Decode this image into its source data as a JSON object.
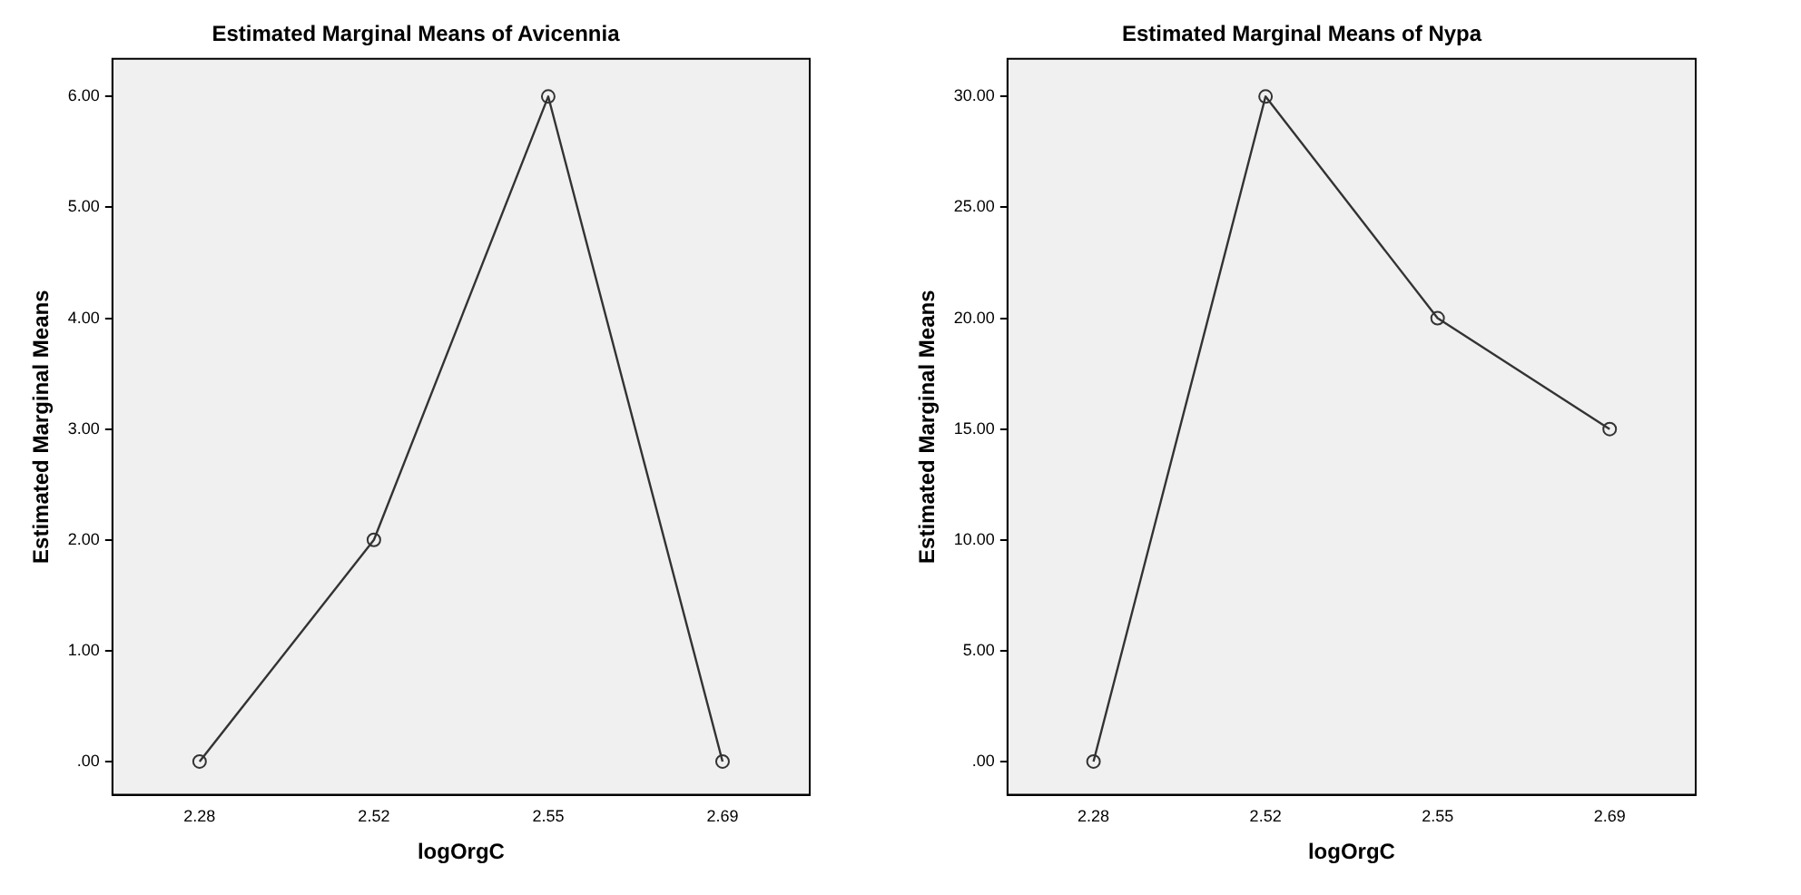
{
  "chart_data": [
    {
      "type": "line",
      "title": "Estimated Marginal Means of Avicennia",
      "xlabel": "logOrgC",
      "ylabel": "Estimated Marginal Means",
      "categories": [
        "2.28",
        "2.52",
        "2.55",
        "2.69"
      ],
      "series": [
        {
          "color": "#333333",
          "values": [
            0,
            2,
            6,
            0
          ]
        }
      ],
      "ylim": [
        -0.3,
        6.34
      ],
      "yticks": [
        {
          "value": 0,
          "label": ".00"
        },
        {
          "value": 1,
          "label": "1.00"
        },
        {
          "value": 2,
          "label": "2.00"
        },
        {
          "value": 3,
          "label": "3.00"
        },
        {
          "value": 4,
          "label": "4.00"
        },
        {
          "value": 5,
          "label": "5.00"
        },
        {
          "value": 6,
          "label": "6.00"
        }
      ],
      "grid": false,
      "legend": false,
      "marker": "circle",
      "line_style": "solid"
    },
    {
      "type": "line",
      "title": "Estimated Marginal Means of Nypa",
      "xlabel": "logOrgC",
      "ylabel": "Estimated Marginal Means",
      "categories": [
        "2.28",
        "2.52",
        "2.55",
        "2.69"
      ],
      "series": [
        {
          "color": "#333333",
          "values": [
            0,
            30,
            20,
            15
          ]
        }
      ],
      "ylim": [
        -1.5,
        31.7
      ],
      "yticks": [
        {
          "value": 0,
          "label": ".00"
        },
        {
          "value": 5,
          "label": "5.00"
        },
        {
          "value": 10,
          "label": "10.00"
        },
        {
          "value": 15,
          "label": "15.00"
        },
        {
          "value": 20,
          "label": "20.00"
        },
        {
          "value": 25,
          "label": "25.00"
        },
        {
          "value": 30,
          "label": "30.00"
        }
      ],
      "grid": false,
      "legend": false,
      "marker": "circle",
      "line_style": "solid"
    }
  ]
}
